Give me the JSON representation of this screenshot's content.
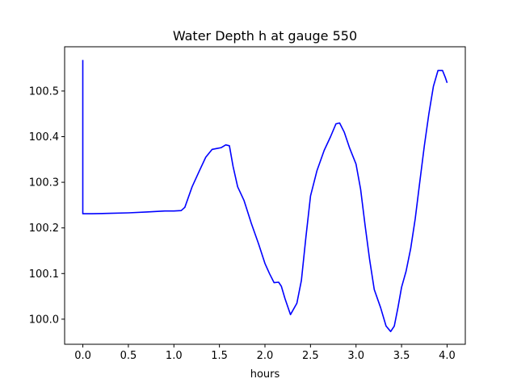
{
  "chart_data": {
    "type": "line",
    "title": "Water Depth h at gauge 550",
    "xlabel": "hours",
    "ylabel": "",
    "xlim": [
      -0.2,
      4.2
    ],
    "ylim": [
      99.945,
      100.597
    ],
    "xticks": [
      0.0,
      0.5,
      1.0,
      1.5,
      2.0,
      2.5,
      3.0,
      3.5,
      4.0
    ],
    "xtick_labels": [
      "0.0",
      "0.5",
      "1.0",
      "1.5",
      "2.0",
      "2.5",
      "3.0",
      "3.5",
      "4.0"
    ],
    "yticks": [
      100.0,
      100.1,
      100.2,
      100.3,
      100.4,
      100.5
    ],
    "ytick_labels": [
      "100.0",
      "100.1",
      "100.2",
      "100.3",
      "100.4",
      "100.5"
    ],
    "grid": false,
    "color": "#0000ff",
    "series": [
      {
        "x": [
          0.0,
          0.0,
          0.1,
          0.3,
          0.5,
          0.7,
          0.9,
          1.0,
          1.08,
          1.12,
          1.2,
          1.28,
          1.35,
          1.42,
          1.47,
          1.52,
          1.57,
          1.61,
          1.65,
          1.7,
          1.77,
          1.85,
          1.93,
          2.0,
          2.05,
          2.1,
          2.15,
          2.18,
          2.22,
          2.28,
          2.35,
          2.4,
          2.45,
          2.5,
          2.57,
          2.65,
          2.72,
          2.78,
          2.82,
          2.87,
          2.93,
          3.0,
          3.05,
          3.1,
          3.15,
          3.2,
          3.27,
          3.33,
          3.38,
          3.42,
          3.46,
          3.5,
          3.55,
          3.6,
          3.65,
          3.7,
          3.75,
          3.8,
          3.85,
          3.9,
          3.95,
          3.98,
          4.0
        ],
        "y": [
          100.568,
          100.231,
          100.231,
          100.232,
          100.233,
          100.235,
          100.237,
          100.237,
          100.238,
          100.245,
          100.29,
          100.325,
          100.355,
          100.372,
          100.374,
          100.376,
          100.382,
          100.38,
          100.335,
          100.29,
          100.26,
          100.21,
          100.165,
          100.122,
          100.1,
          100.08,
          100.081,
          100.072,
          100.045,
          100.01,
          100.035,
          100.085,
          100.18,
          100.27,
          100.325,
          100.37,
          100.4,
          100.428,
          100.43,
          100.41,
          100.375,
          100.34,
          100.285,
          100.205,
          100.13,
          100.065,
          100.025,
          99.985,
          99.973,
          99.985,
          100.025,
          100.07,
          100.105,
          100.155,
          100.22,
          100.3,
          100.38,
          100.45,
          100.51,
          100.545,
          100.545,
          100.53,
          100.518
        ]
      }
    ]
  }
}
